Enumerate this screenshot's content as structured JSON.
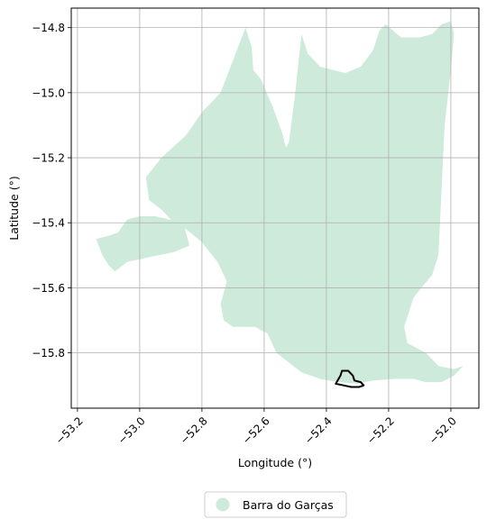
{
  "chart_data": {
    "type": "map",
    "xlabel": "Longitude (°)",
    "ylabel": "Latitude (°)",
    "xlim": [
      -53.22,
      -51.91
    ],
    "ylim": [
      -15.97,
      -14.74
    ],
    "grid": true,
    "x_ticks": [
      {
        "value": -53.2,
        "label": "−53.2"
      },
      {
        "value": -53.0,
        "label": "−53.0"
      },
      {
        "value": -52.8,
        "label": "−52.8"
      },
      {
        "value": -52.6,
        "label": "−52.6"
      },
      {
        "value": -52.4,
        "label": "−52.4"
      },
      {
        "value": -52.2,
        "label": "−52.2"
      },
      {
        "value": -52.0,
        "label": "−52.0"
      }
    ],
    "y_ticks": [
      {
        "value": -14.8,
        "label": "−14.8"
      },
      {
        "value": -15.0,
        "label": "−15.0"
      },
      {
        "value": -15.2,
        "label": "−15.2"
      },
      {
        "value": -15.4,
        "label": "−15.4"
      },
      {
        "value": -15.6,
        "label": "−15.6"
      },
      {
        "value": -15.8,
        "label": "−15.8"
      }
    ],
    "region": {
      "name": "Barra do Garças",
      "color": "#cdeadb",
      "polygon": [
        [
          -52.66,
          -14.8
        ],
        [
          -52.64,
          -14.86
        ],
        [
          -52.635,
          -14.93
        ],
        [
          -52.61,
          -14.96
        ],
        [
          -52.57,
          -15.05
        ],
        [
          -52.54,
          -15.13
        ],
        [
          -52.53,
          -15.17
        ],
        [
          -52.52,
          -15.15
        ],
        [
          -52.5,
          -15.0
        ],
        [
          -52.48,
          -14.82
        ],
        [
          -52.46,
          -14.88
        ],
        [
          -52.42,
          -14.92
        ],
        [
          -52.34,
          -14.94
        ],
        [
          -52.29,
          -14.92
        ],
        [
          -52.25,
          -14.87
        ],
        [
          -52.23,
          -14.81
        ],
        [
          -52.21,
          -14.79
        ],
        [
          -52.16,
          -14.83
        ],
        [
          -52.1,
          -14.83
        ],
        [
          -52.06,
          -14.82
        ],
        [
          -52.03,
          -14.79
        ],
        [
          -52.0,
          -14.78
        ],
        [
          -51.99,
          -14.82
        ],
        [
          -52.0,
          -14.93
        ],
        [
          -52.02,
          -15.1
        ],
        [
          -52.03,
          -15.3
        ],
        [
          -52.04,
          -15.5
        ],
        [
          -52.06,
          -15.56
        ],
        [
          -52.12,
          -15.63
        ],
        [
          -52.15,
          -15.72
        ],
        [
          -52.14,
          -15.77
        ],
        [
          -52.08,
          -15.8
        ],
        [
          -52.04,
          -15.84
        ],
        [
          -51.99,
          -15.85
        ],
        [
          -51.96,
          -15.84
        ],
        [
          -51.99,
          -15.87
        ],
        [
          -52.03,
          -15.89
        ],
        [
          -52.08,
          -15.89
        ],
        [
          -52.12,
          -15.88
        ],
        [
          -52.18,
          -15.88
        ],
        [
          -52.25,
          -15.885
        ],
        [
          -52.3,
          -15.895
        ],
        [
          -52.36,
          -15.89
        ],
        [
          -52.42,
          -15.88
        ],
        [
          -52.48,
          -15.86
        ],
        [
          -52.52,
          -15.83
        ],
        [
          -52.56,
          -15.8
        ],
        [
          -52.59,
          -15.74
        ],
        [
          -52.63,
          -15.72
        ],
        [
          -52.7,
          -15.72
        ],
        [
          -52.73,
          -15.7
        ],
        [
          -52.74,
          -15.65
        ],
        [
          -52.72,
          -15.58
        ],
        [
          -52.75,
          -15.52
        ],
        [
          -52.8,
          -15.46
        ],
        [
          -52.85,
          -15.42
        ],
        [
          -52.9,
          -15.39
        ],
        [
          -52.93,
          -15.36
        ],
        [
          -52.97,
          -15.33
        ],
        [
          -52.98,
          -15.26
        ],
        [
          -52.93,
          -15.2
        ],
        [
          -52.85,
          -15.13
        ],
        [
          -52.8,
          -15.06
        ],
        [
          -52.74,
          -15.0
        ],
        [
          -52.7,
          -14.9
        ]
      ],
      "west_lobe": [
        [
          -52.86,
          -15.4
        ],
        [
          -52.95,
          -15.38
        ],
        [
          -53.0,
          -15.38
        ],
        [
          -53.04,
          -15.39
        ],
        [
          -53.07,
          -15.43
        ],
        [
          -53.1,
          -15.44
        ],
        [
          -53.14,
          -15.45
        ],
        [
          -53.12,
          -15.5
        ],
        [
          -53.1,
          -15.53
        ],
        [
          -53.08,
          -15.55
        ],
        [
          -53.04,
          -15.52
        ],
        [
          -52.99,
          -15.51
        ],
        [
          -52.94,
          -15.5
        ],
        [
          -52.89,
          -15.49
        ],
        [
          -52.84,
          -15.47
        ]
      ],
      "focus_outline": [
        [
          -52.37,
          -15.895
        ],
        [
          -52.355,
          -15.87
        ],
        [
          -52.35,
          -15.855
        ],
        [
          -52.33,
          -15.855
        ],
        [
          -52.315,
          -15.87
        ],
        [
          -52.31,
          -15.885
        ],
        [
          -52.29,
          -15.89
        ],
        [
          -52.28,
          -15.9
        ],
        [
          -52.295,
          -15.905
        ],
        [
          -52.32,
          -15.905
        ],
        [
          -52.345,
          -15.9
        ]
      ]
    },
    "legend": {
      "placement": "bottom-center",
      "label": "Barra do Garças",
      "marker_color": "#cdeadb"
    }
  }
}
